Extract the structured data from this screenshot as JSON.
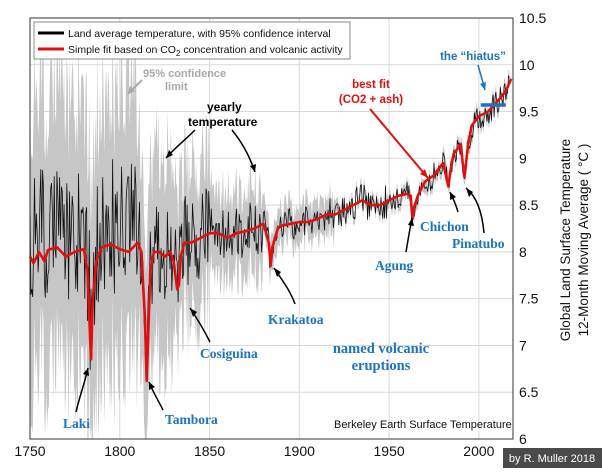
{
  "chart_data": {
    "type": "line",
    "title": "",
    "xlabel": "",
    "ylabel": "Global Land Surface Temperature 12-Month Moving Average ( °C )",
    "ylabel_lines": [
      "Global Land Surface Temperature",
      "12-Month Moving Average ( °C )"
    ],
    "xlim": [
      1750,
      2019
    ],
    "ylim": [
      6,
      10.5
    ],
    "xticks": [
      1750,
      1800,
      1850,
      1900,
      1950,
      2000
    ],
    "yticks": [
      6,
      6.5,
      7,
      7.5,
      8,
      8.5,
      9,
      9.5,
      10,
      10.5
    ],
    "grid": true,
    "legend_position": "top-left",
    "legend": [
      {
        "label": "Land average temperature, with 95% confidence interval",
        "color": "#000000"
      },
      {
        "label_prefix": "Simple fit based on CO",
        "label_sub": "2",
        "label_suffix": " concentration and volcanic activity",
        "color": "#e01010"
      }
    ],
    "series": [
      {
        "key": "fit",
        "color": "#e01010",
        "x": [
          1750,
          1752,
          1755,
          1758,
          1760,
          1765,
          1770,
          1775,
          1780,
          1782,
          1783,
          1784,
          1785,
          1787,
          1790,
          1795,
          1800,
          1805,
          1810,
          1812,
          1814,
          1815,
          1816,
          1817,
          1819,
          1822,
          1825,
          1828,
          1830,
          1832,
          1833,
          1834,
          1836,
          1840,
          1845,
          1850,
          1855,
          1860,
          1865,
          1870,
          1875,
          1880,
          1883,
          1884,
          1885,
          1888,
          1890,
          1895,
          1900,
          1905,
          1910,
          1915,
          1920,
          1925,
          1930,
          1935,
          1940,
          1945,
          1950,
          1955,
          1960,
          1962,
          1963,
          1964,
          1966,
          1968,
          1970,
          1975,
          1980,
          1982,
          1983,
          1984,
          1986,
          1990,
          1991,
          1992,
          1994,
          1996,
          2000,
          2005,
          2010,
          2015,
          2018
        ],
        "y": [
          7.95,
          7.88,
          8.0,
          7.9,
          8.02,
          8.05,
          7.95,
          8.0,
          8.03,
          7.8,
          7.3,
          6.85,
          7.5,
          7.9,
          8.05,
          8.08,
          8.03,
          8.0,
          8.1,
          8.0,
          7.3,
          6.62,
          7.2,
          7.8,
          8.0,
          8.0,
          7.95,
          8.0,
          7.9,
          7.6,
          7.65,
          7.95,
          8.1,
          8.1,
          8.15,
          8.2,
          8.2,
          8.15,
          8.2,
          8.22,
          8.25,
          8.3,
          8.1,
          7.85,
          8.05,
          8.25,
          8.28,
          8.3,
          8.32,
          8.32,
          8.35,
          8.4,
          8.4,
          8.45,
          8.5,
          8.55,
          8.5,
          8.5,
          8.55,
          8.6,
          8.62,
          8.6,
          8.35,
          8.48,
          8.6,
          8.68,
          8.75,
          8.82,
          8.95,
          8.78,
          8.7,
          8.85,
          9.05,
          9.15,
          8.95,
          8.8,
          9.15,
          9.35,
          9.45,
          9.5,
          9.6,
          9.72,
          9.85
        ]
      },
      {
        "key": "hiatus",
        "color": "#1e73be",
        "x": [
          2001,
          2015
        ],
        "y": [
          9.57,
          9.57
        ]
      }
    ],
    "annotations": [
      {
        "key": "ci",
        "line1": "95% confidence",
        "line2": "limit",
        "color": "#a8a8a8"
      },
      {
        "key": "yearly",
        "line1": "yearly",
        "line2": "temperature",
        "color": "#000000"
      },
      {
        "key": "bestfit",
        "line1": "best fit",
        "line2": "(CO2 + ash)",
        "color": "#e01010"
      },
      {
        "key": "hiatus",
        "text": "the “hiatus”",
        "color": "#1e73be"
      },
      {
        "key": "volcanic",
        "line1": "named volcanic",
        "line2": "eruptions",
        "color": "#1e73be"
      },
      {
        "key": "laki",
        "text": "Laki",
        "color": "#1e73be",
        "x": 1783,
        "y": 6.85
      },
      {
        "key": "tambora",
        "text": "Tambora",
        "color": "#1e73be",
        "x": 1815,
        "y": 6.62
      },
      {
        "key": "cosiguina",
        "text": "Cosiguina",
        "color": "#1e73be",
        "x": 1835,
        "y": 7.5
      },
      {
        "key": "krakatoa",
        "text": "Krakatoa",
        "color": "#1e73be",
        "x": 1884,
        "y": 7.85
      },
      {
        "key": "agung",
        "text": "Agung",
        "color": "#1e73be",
        "x": 1963,
        "y": 8.35
      },
      {
        "key": "chichon",
        "text": "Chichon",
        "color": "#1e73be",
        "x": 1982,
        "y": 8.7
      },
      {
        "key": "pinatubo",
        "text": "Pinatubo",
        "color": "#1e73be",
        "x": 1991,
        "y": 8.8
      }
    ],
    "source_label": "Berkeley Earth Surface Temperature",
    "credit": "by R. Muller 2018"
  }
}
